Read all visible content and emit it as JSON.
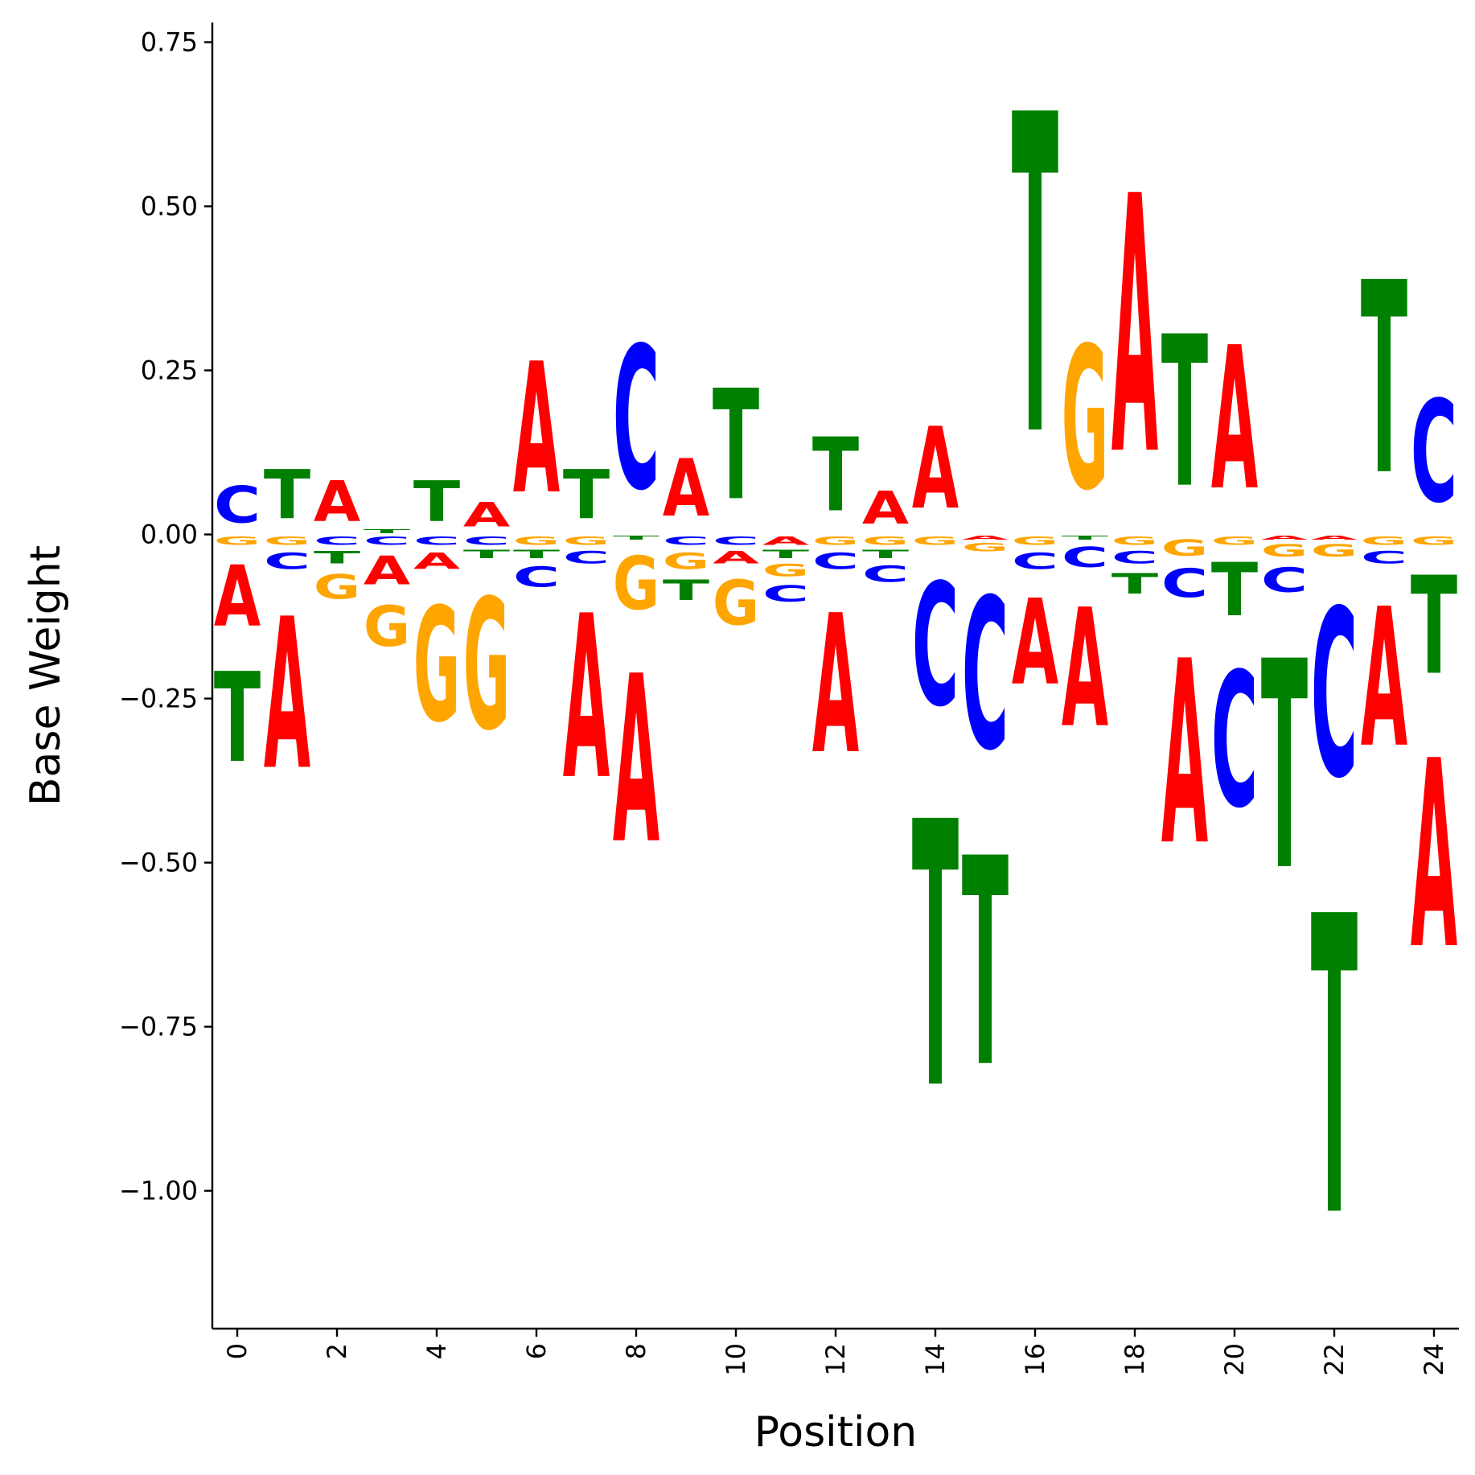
{
  "chart_data": {
    "type": "sequence-logo",
    "xlabel": "Position",
    "ylabel": "Base Weight",
    "xlim": [
      -0.5,
      24.5
    ],
    "ylim": [
      -1.21,
      0.78
    ],
    "xticks": [
      0,
      2,
      4,
      6,
      8,
      10,
      12,
      14,
      16,
      18,
      20,
      22,
      24
    ],
    "yticks": [
      0.75,
      0.5,
      0.25,
      0.0,
      -0.25,
      -0.5,
      -0.75,
      -1.0
    ],
    "ytick_labels": [
      "0.75",
      "0.50",
      "0.25",
      "0.00",
      "−0.25",
      "−0.50",
      "−0.75",
      "−1.00"
    ],
    "colors": {
      "A": "#ff0000",
      "C": "#0000ff",
      "G": "#ffa500",
      "T": "#008000"
    },
    "positions": [
      {
        "pos": 0,
        "weights": {
          "A": -0.15,
          "C": 0.09,
          "G": -0.02,
          "T": -0.22
        }
      },
      {
        "pos": 1,
        "weights": {
          "A": -0.37,
          "C": -0.04,
          "G": -0.02,
          "T": 0.12
        }
      },
      {
        "pos": 2,
        "weights": {
          "A": 0.1,
          "C": -0.02,
          "G": -0.06,
          "T": -0.03
        }
      },
      {
        "pos": 3,
        "weights": {
          "A": -0.07,
          "C": -0.02,
          "G": -0.1,
          "T": 0.01
        }
      },
      {
        "pos": 4,
        "weights": {
          "A": -0.04,
          "C": -0.02,
          "G": -0.28,
          "T": 0.1
        }
      },
      {
        "pos": 5,
        "weights": {
          "A": 0.06,
          "C": -0.02,
          "G": -0.32,
          "T": -0.02
        }
      },
      {
        "pos": 6,
        "weights": {
          "A": 0.32,
          "C": -0.05,
          "G": -0.02,
          "T": -0.02
        }
      },
      {
        "pos": 7,
        "weights": {
          "A": -0.4,
          "C": -0.03,
          "G": -0.02,
          "T": 0.12
        }
      },
      {
        "pos": 8,
        "weights": {
          "A": -0.41,
          "C": 0.35,
          "G": -0.13,
          "T": -0.01
        }
      },
      {
        "pos": 9,
        "weights": {
          "A": 0.14,
          "C": -0.02,
          "G": -0.04,
          "T": -0.05
        }
      },
      {
        "pos": 10,
        "weights": {
          "A": -0.03,
          "C": -0.02,
          "G": -0.11,
          "T": 0.27
        }
      },
      {
        "pos": 11,
        "weights": {
          "A": -0.02,
          "C": -0.04,
          "G": -0.03,
          "T": -0.02
        }
      },
      {
        "pos": 12,
        "weights": {
          "A": -0.34,
          "C": -0.04,
          "G": -0.02,
          "T": 0.18
        }
      },
      {
        "pos": 13,
        "weights": {
          "A": 0.08,
          "C": -0.04,
          "G": -0.02,
          "T": -0.02
        }
      },
      {
        "pos": 14,
        "weights": {
          "A": 0.2,
          "C": -0.3,
          "G": -0.02,
          "T": -0.65
        }
      },
      {
        "pos": 15,
        "weights": {
          "A": -0.01,
          "C": -0.37,
          "G": -0.02,
          "T": -0.51
        }
      },
      {
        "pos": 16,
        "weights": {
          "A": -0.21,
          "C": -0.04,
          "G": -0.02,
          "T": 0.78
        }
      },
      {
        "pos": 17,
        "weights": {
          "A": -0.29,
          "C": -0.05,
          "G": 0.35,
          "T": -0.01
        }
      },
      {
        "pos": 18,
        "weights": {
          "A": 0.63,
          "C": -0.03,
          "G": -0.02,
          "T": -0.05
        }
      },
      {
        "pos": 19,
        "weights": {
          "A": -0.45,
          "C": -0.07,
          "G": -0.04,
          "T": 0.37
        }
      },
      {
        "pos": 20,
        "weights": {
          "A": 0.35,
          "C": -0.33,
          "G": -0.02,
          "T": -0.13
        }
      },
      {
        "pos": 21,
        "weights": {
          "A": -0.01,
          "C": -0.06,
          "G": -0.03,
          "T": -0.51
        }
      },
      {
        "pos": 22,
        "weights": {
          "A": -0.01,
          "C": -0.41,
          "G": -0.03,
          "T": -0.73
        }
      },
      {
        "pos": 23,
        "weights": {
          "A": -0.34,
          "C": -0.03,
          "G": -0.02,
          "T": 0.47
        }
      },
      {
        "pos": 24,
        "weights": {
          "A": -0.46,
          "C": 0.25,
          "G": -0.02,
          "T": -0.24
        }
      }
    ]
  }
}
